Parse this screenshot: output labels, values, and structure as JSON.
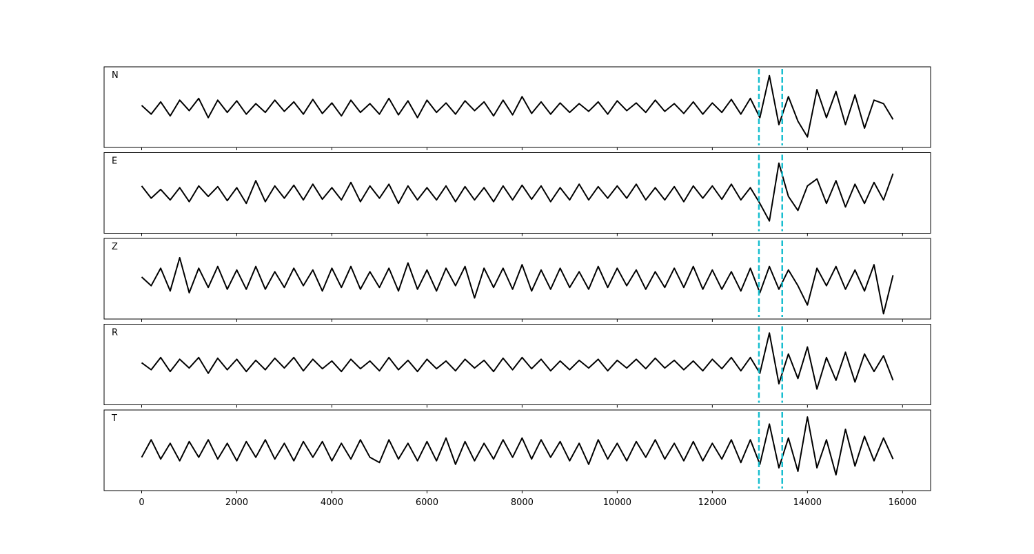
{
  "chart_data": {
    "type": "line",
    "x": [
      0,
      200,
      400,
      600,
      800,
      1000,
      1200,
      1400,
      1600,
      1800,
      2000,
      2200,
      2400,
      2600,
      2800,
      3000,
      3200,
      3400,
      3600,
      3800,
      4000,
      4200,
      4400,
      4600,
      4800,
      5000,
      5200,
      5400,
      5600,
      5800,
      6000,
      6200,
      6400,
      6600,
      6800,
      7000,
      7200,
      7400,
      7600,
      7800,
      8000,
      8200,
      8400,
      8600,
      8800,
      9000,
      9200,
      9400,
      9600,
      9800,
      10000,
      10200,
      10400,
      10600,
      10800,
      11000,
      11200,
      11400,
      11600,
      11800,
      12000,
      12200,
      12400,
      12600,
      12800,
      13000,
      13200,
      13400,
      13600,
      13800,
      14000,
      14200,
      14400,
      14600,
      14800,
      15000,
      15200,
      15400,
      15600,
      15800
    ],
    "series": [
      {
        "name": "N",
        "color": "#000000",
        "values": [
          0.05,
          -0.2,
          0.15,
          -0.25,
          0.2,
          -0.1,
          0.25,
          -0.3,
          0.2,
          -0.15,
          0.18,
          -0.2,
          0.1,
          -0.15,
          0.2,
          -0.12,
          0.15,
          -0.2,
          0.22,
          -0.18,
          0.12,
          -0.25,
          0.2,
          -0.15,
          0.1,
          -0.2,
          0.25,
          -0.22,
          0.18,
          -0.3,
          0.2,
          -0.15,
          0.12,
          -0.2,
          0.18,
          -0.1,
          0.15,
          -0.25,
          0.2,
          -0.22,
          0.3,
          -0.18,
          0.15,
          -0.2,
          0.12,
          -0.15,
          0.1,
          -0.12,
          0.15,
          -0.2,
          0.18,
          -0.1,
          0.12,
          -0.15,
          0.2,
          -0.12,
          0.1,
          -0.18,
          0.15,
          -0.2,
          0.12,
          -0.15,
          0.22,
          -0.2,
          0.25,
          -0.3,
          0.9,
          -0.5,
          0.3,
          -0.4,
          -0.85,
          0.5,
          -0.3,
          0.45,
          -0.5,
          0.35,
          -0.6,
          0.2,
          0.1,
          -0.35
        ]
      },
      {
        "name": "E",
        "color": "#000000",
        "values": [
          0.2,
          -0.15,
          0.1,
          -0.2,
          0.15,
          -0.25,
          0.2,
          -0.1,
          0.18,
          -0.22,
          0.15,
          -0.3,
          0.35,
          -0.25,
          0.2,
          -0.15,
          0.22,
          -0.2,
          0.25,
          -0.18,
          0.15,
          -0.2,
          0.3,
          -0.25,
          0.2,
          -0.15,
          0.25,
          -0.3,
          0.2,
          -0.2,
          0.15,
          -0.2,
          0.2,
          -0.25,
          0.18,
          -0.2,
          0.15,
          -0.25,
          0.2,
          -0.2,
          0.22,
          -0.18,
          0.2,
          -0.25,
          0.15,
          -0.2,
          0.25,
          -0.2,
          0.18,
          -0.15,
          0.2,
          -0.15,
          0.25,
          -0.2,
          0.15,
          -0.2,
          0.18,
          -0.25,
          0.2,
          -0.15,
          0.2,
          -0.18,
          0.25,
          -0.2,
          0.15,
          -0.3,
          -0.8,
          0.85,
          -0.1,
          -0.5,
          0.2,
          0.4,
          -0.3,
          0.35,
          -0.4,
          0.25,
          -0.3,
          0.3,
          -0.2,
          0.55
        ]
      },
      {
        "name": "Z",
        "color": "#000000",
        "values": [
          0.05,
          -0.2,
          0.3,
          -0.35,
          0.6,
          -0.4,
          0.3,
          -0.25,
          0.35,
          -0.3,
          0.25,
          -0.3,
          0.35,
          -0.3,
          0.2,
          -0.25,
          0.3,
          -0.2,
          0.25,
          -0.35,
          0.3,
          -0.25,
          0.35,
          -0.3,
          0.2,
          -0.25,
          0.3,
          -0.35,
          0.45,
          -0.3,
          0.25,
          -0.35,
          0.3,
          -0.2,
          0.35,
          -0.55,
          0.3,
          -0.25,
          0.3,
          -0.3,
          0.4,
          -0.35,
          0.25,
          -0.3,
          0.3,
          -0.25,
          0.2,
          -0.3,
          0.35,
          -0.25,
          0.3,
          -0.2,
          0.25,
          -0.3,
          0.2,
          -0.25,
          0.3,
          -0.25,
          0.35,
          -0.3,
          0.25,
          -0.3,
          0.2,
          -0.35,
          0.3,
          -0.4,
          0.35,
          -0.3,
          0.25,
          -0.2,
          -0.75,
          0.3,
          -0.2,
          0.35,
          -0.3,
          0.25,
          -0.35,
          0.4,
          -1.0,
          0.1
        ]
      },
      {
        "name": "R",
        "color": "#000000",
        "values": [
          0.05,
          -0.15,
          0.2,
          -0.2,
          0.15,
          -0.1,
          0.2,
          -0.25,
          0.18,
          -0.15,
          0.15,
          -0.2,
          0.12,
          -0.15,
          0.18,
          -0.1,
          0.2,
          -0.18,
          0.15,
          -0.12,
          0.1,
          -0.2,
          0.15,
          -0.12,
          0.1,
          -0.18,
          0.2,
          -0.15,
          0.12,
          -0.2,
          0.15,
          -0.12,
          0.1,
          -0.18,
          0.15,
          -0.1,
          0.12,
          -0.2,
          0.18,
          -0.15,
          0.2,
          -0.12,
          0.15,
          -0.18,
          0.1,
          -0.15,
          0.12,
          -0.1,
          0.15,
          -0.18,
          0.12,
          -0.1,
          0.15,
          -0.12,
          0.18,
          -0.1,
          0.12,
          -0.15,
          0.1,
          -0.18,
          0.15,
          -0.12,
          0.2,
          -0.18,
          0.2,
          -0.25,
          0.9,
          -0.55,
          0.3,
          -0.4,
          0.5,
          -0.7,
          0.2,
          -0.45,
          0.35,
          -0.5,
          0.3,
          -0.2,
          0.25,
          -0.45
        ]
      },
      {
        "name": "T",
        "color": "#000000",
        "values": [
          -0.2,
          0.3,
          -0.25,
          0.2,
          -0.3,
          0.25,
          -0.2,
          0.3,
          -0.25,
          0.2,
          -0.3,
          0.25,
          -0.2,
          0.3,
          -0.25,
          0.2,
          -0.3,
          0.25,
          -0.2,
          0.25,
          -0.3,
          0.2,
          -0.25,
          0.3,
          -0.2,
          -0.35,
          0.3,
          -0.25,
          0.2,
          -0.3,
          0.25,
          -0.3,
          0.35,
          -0.4,
          0.25,
          -0.3,
          0.2,
          -0.25,
          0.3,
          -0.2,
          0.35,
          -0.25,
          0.3,
          -0.2,
          0.25,
          -0.3,
          0.2,
          -0.4,
          0.3,
          -0.25,
          0.2,
          -0.3,
          0.25,
          -0.2,
          0.3,
          -0.25,
          0.2,
          -0.3,
          0.25,
          -0.3,
          0.2,
          -0.25,
          0.3,
          -0.35,
          0.3,
          -0.4,
          0.75,
          -0.5,
          0.35,
          -0.6,
          0.95,
          -0.5,
          0.3,
          -0.7,
          0.6,
          -0.45,
          0.4,
          -0.3,
          0.35,
          -0.25
        ]
      }
    ],
    "xlim": [
      -790,
      16590
    ],
    "xticks": [
      0,
      2000,
      4000,
      6000,
      8000,
      10000,
      12000,
      14000,
      16000
    ],
    "ylim": [
      -1.15,
      1.15
    ],
    "markers": [
      12980,
      13470
    ],
    "marker_color": "#17becf"
  }
}
